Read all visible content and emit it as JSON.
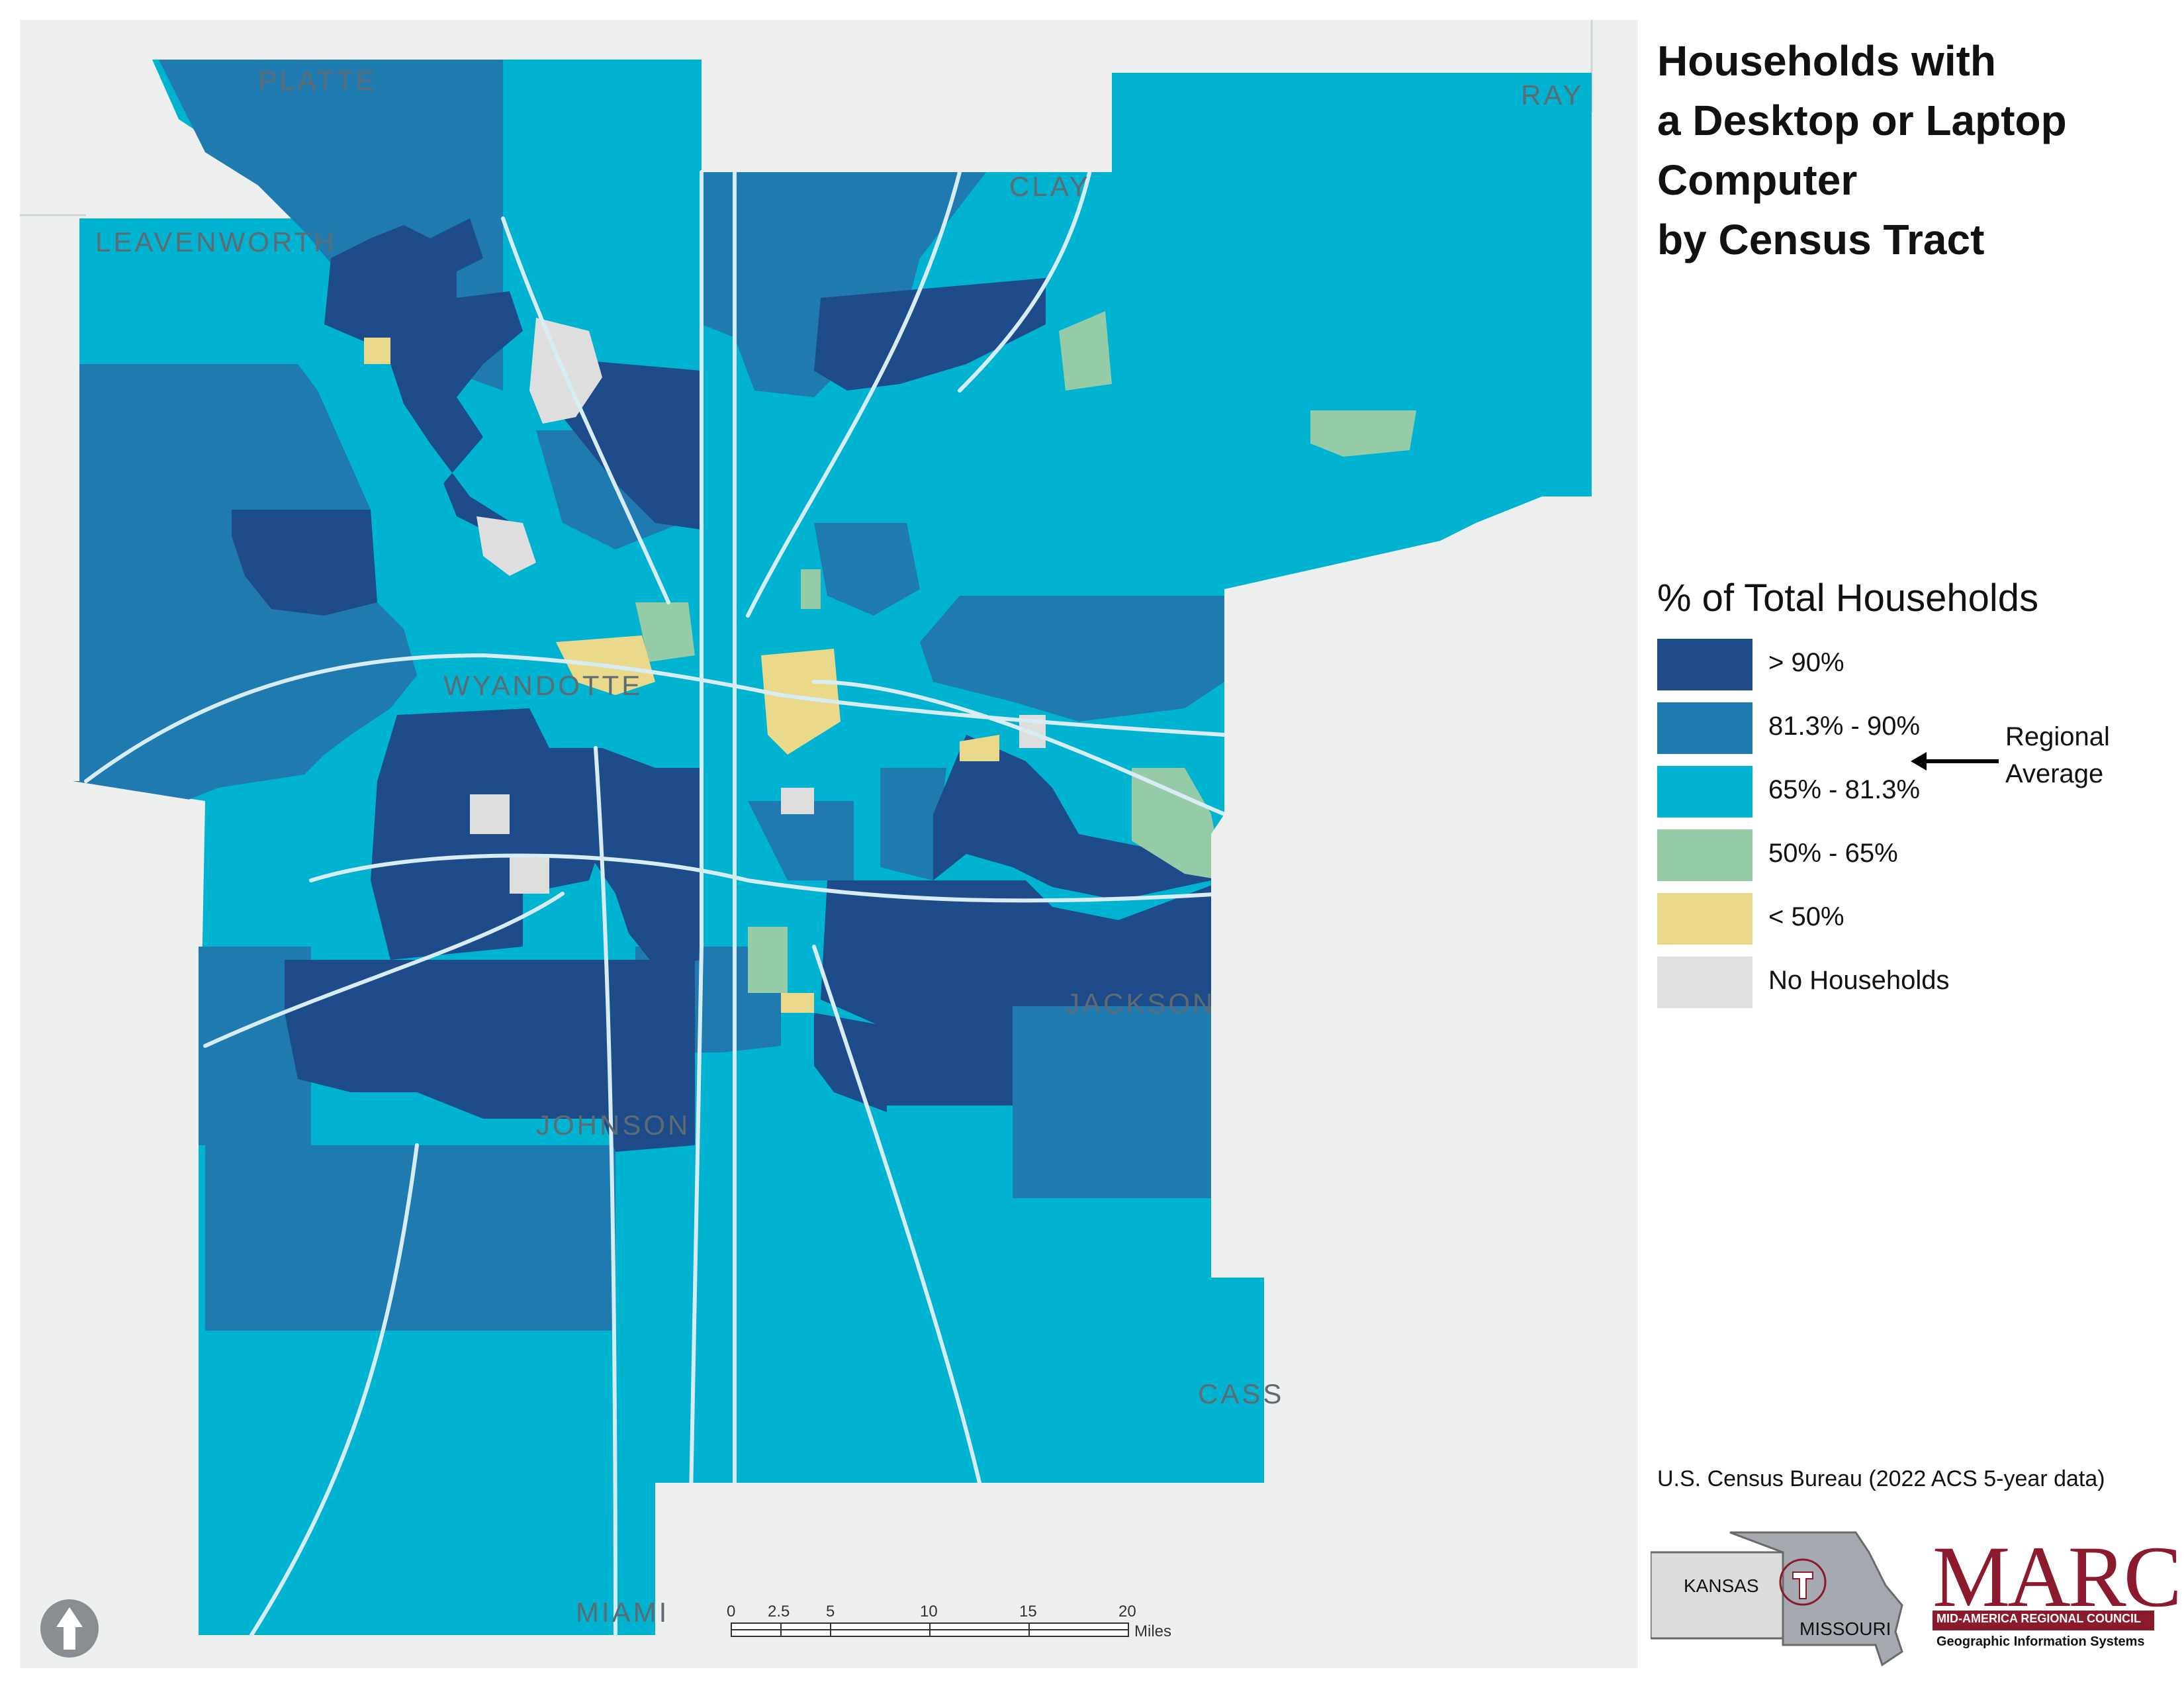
{
  "title": {
    "lines": [
      "Households with",
      "a Desktop or Laptop",
      "Computer",
      "by Census Tract"
    ]
  },
  "legend": {
    "title": "% of Total Households",
    "items": [
      {
        "label": "> 90%",
        "color": "#1e4b8a"
      },
      {
        "label": "81.3% - 90%",
        "color": "#1e7aaf"
      },
      {
        "label": "65% - 81.3%",
        "color": "#00b3d1"
      },
      {
        "label": "50% - 65%",
        "color": "#96cba8"
      },
      {
        "label": "< 50%",
        "color": "#ebd98b"
      },
      {
        "label": "No Households",
        "color": "#e0e0e0"
      }
    ],
    "regional_note": [
      "Regional",
      "Average"
    ]
  },
  "counties": {
    "platte": "PLATTE",
    "clay": "CLAY",
    "ray": "RAY",
    "leavenworth": "LEAVENWORTH",
    "wyandotte": "WYANDOTTE",
    "jackson": "JACKSON",
    "johnson": "JOHNSON",
    "cass": "CASS",
    "miami": "MIAMI"
  },
  "scale_bar": {
    "ticks": [
      "0",
      "2.5",
      "5",
      "10",
      "15",
      "20"
    ],
    "unit": "Miles"
  },
  "source": "U.S. Census Bureau (2022 ACS 5-year data)",
  "inset": {
    "kansas": "KANSAS",
    "missouri": "MISSOURI"
  },
  "logo": {
    "name": "MARC",
    "subtitle": "MID-AMERICA REGIONAL COUNCIL",
    "division": "Geographic Information Systems"
  },
  "colors": {
    "background": "#eeefef",
    "roads": "#d7ecf3",
    "brand": "#8a1a2c"
  }
}
